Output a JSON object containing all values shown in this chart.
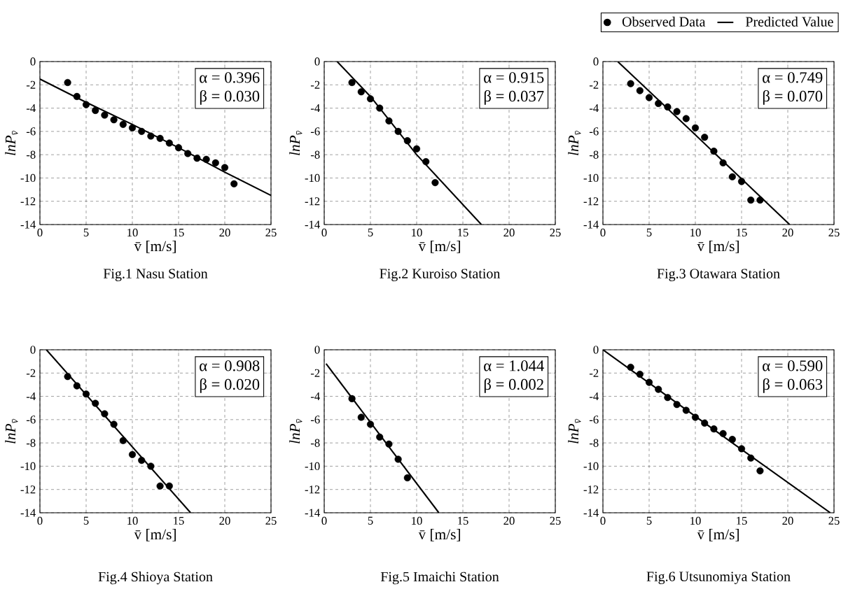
{
  "chart_data": [
    {
      "type": "scatter",
      "title": "Fig.1 Nasu Station",
      "xlabel": "v̄ [m/s]",
      "ylabel": "lnP$_{v̄}$",
      "annotations": [
        "α = 0.396",
        "β = 0.030"
      ],
      "xlim": [
        0,
        25
      ],
      "ylim": [
        -14,
        0
      ],
      "xticks": [
        0,
        5,
        10,
        15,
        20,
        25
      ],
      "yticks": [
        0,
        -2,
        -4,
        -6,
        -8,
        -10,
        -12,
        -14
      ],
      "grid": true,
      "series": [
        {
          "type": "scatter",
          "marker": "circle",
          "color": "#000000",
          "x": [
            3,
            4,
            5,
            6,
            7,
            8,
            9,
            10,
            11,
            12,
            13,
            14,
            15,
            16,
            17,
            18,
            19,
            20,
            21
          ],
          "values": [
            -1.8,
            -3.0,
            -3.7,
            -4.2,
            -4.6,
            -5.0,
            -5.4,
            -5.7,
            -6.0,
            -6.4,
            -6.6,
            -7.0,
            -7.4,
            -7.9,
            -8.3,
            -8.4,
            -8.7,
            -9.1,
            -10.5
          ]
        },
        {
          "type": "line",
          "marker": "none",
          "line_style": "solid",
          "color": "#000000",
          "x": [
            0,
            3,
            5,
            10,
            15,
            20,
            25
          ],
          "values": [
            -1.5,
            -2.7,
            -3.5,
            -5.4,
            -7.4,
            -9.5,
            -11.5
          ]
        }
      ]
    },
    {
      "type": "scatter",
      "title": "Fig.2 Kuroiso Station",
      "xlabel": "v̄ [m/s]",
      "ylabel": "lnP$_{v̄}$",
      "annotations": [
        "α = 0.915",
        "β = 0.037"
      ],
      "xlim": [
        0,
        25
      ],
      "ylim": [
        -14,
        0
      ],
      "xticks": [
        0,
        5,
        10,
        15,
        20,
        25
      ],
      "yticks": [
        0,
        -2,
        -4,
        -6,
        -8,
        -10,
        -12,
        -14
      ],
      "grid": true,
      "series": [
        {
          "type": "scatter",
          "marker": "circle",
          "color": "#000000",
          "x": [
            3,
            4,
            5,
            6,
            7,
            8,
            9,
            10,
            11,
            12
          ],
          "values": [
            -1.8,
            -2.6,
            -3.2,
            -4.0,
            -5.1,
            -6.0,
            -6.8,
            -7.5,
            -8.6,
            -10.4
          ]
        },
        {
          "type": "line",
          "marker": "none",
          "line_style": "solid",
          "color": "#000000",
          "x": [
            1.4,
            5,
            10,
            17
          ],
          "values": [
            0,
            -3.0,
            -8.0,
            -14
          ]
        }
      ]
    },
    {
      "type": "scatter",
      "title": "Fig.3 Otawara Station",
      "xlabel": "v̄ [m/s]",
      "ylabel": "lnP$_{v̄}$",
      "annotations": [
        "α = 0.749",
        "β = 0.070"
      ],
      "xlim": [
        0,
        25
      ],
      "ylim": [
        -14,
        0
      ],
      "xticks": [
        0,
        5,
        10,
        15,
        20,
        25
      ],
      "yticks": [
        0,
        -2,
        -4,
        -6,
        -8,
        -10,
        -12,
        -14
      ],
      "grid": true,
      "legend": "top right",
      "series": [
        {
          "type": "scatter",
          "name": "Observed Data",
          "marker": "circle",
          "color": "#000000",
          "x": [
            3,
            4,
            5,
            6,
            7,
            8,
            9,
            10,
            11,
            12,
            13,
            14,
            15,
            16,
            17
          ],
          "values": [
            -1.9,
            -2.5,
            -3.1,
            -3.6,
            -3.9,
            -4.3,
            -4.9,
            -5.7,
            -6.5,
            -7.7,
            -8.7,
            -9.9,
            -10.3,
            -11.9,
            -11.9
          ]
        },
        {
          "type": "line",
          "name": "Predicted Value",
          "marker": "none",
          "line_style": "solid",
          "color": "#000000",
          "x": [
            1.6,
            10,
            20.2
          ],
          "values": [
            0,
            -6.3,
            -14
          ]
        }
      ]
    },
    {
      "type": "scatter",
      "title": "Fig.4 Shioya Station",
      "xlabel": "v̄ [m/s]",
      "ylabel": "lnP$_{v̄}$",
      "annotations": [
        "α = 0.908",
        "β = 0.020"
      ],
      "xlim": [
        0,
        25
      ],
      "ylim": [
        -14,
        0
      ],
      "xticks": [
        0,
        5,
        10,
        15,
        20,
        25
      ],
      "yticks": [
        0,
        -2,
        -4,
        -6,
        -8,
        -10,
        -12,
        -14
      ],
      "grid": true,
      "series": [
        {
          "type": "scatter",
          "marker": "circle",
          "color": "#000000",
          "x": [
            3,
            4,
            5,
            6,
            7,
            8,
            9,
            10,
            11,
            12,
            13,
            14
          ],
          "values": [
            -2.3,
            -3.1,
            -3.8,
            -4.6,
            -5.5,
            -6.4,
            -7.8,
            -9.0,
            -9.5,
            -10.0,
            -11.7,
            -11.7
          ]
        },
        {
          "type": "line",
          "marker": "none",
          "line_style": "solid",
          "color": "#000000",
          "x": [
            0.7,
            16.3
          ],
          "values": [
            0,
            -14
          ]
        }
      ]
    },
    {
      "type": "scatter",
      "title": "Fig.5 Imaichi Station",
      "xlabel": "v̄ [m/s]",
      "ylabel": "lnP$_{v̄}$",
      "annotations": [
        "α = 1.044",
        "β = 0.002"
      ],
      "xlim": [
        0,
        25
      ],
      "ylim": [
        -14,
        0
      ],
      "xticks": [
        0,
        5,
        10,
        15,
        20,
        25
      ],
      "yticks": [
        0,
        -2,
        -4,
        -6,
        -8,
        -10,
        -12,
        -14
      ],
      "grid": true,
      "series": [
        {
          "type": "scatter",
          "marker": "circle",
          "color": "#000000",
          "x": [
            3,
            4,
            5,
            6,
            7,
            8,
            9
          ],
          "values": [
            -4.2,
            -5.8,
            -6.4,
            -7.5,
            -8.1,
            -9.4,
            -11.0
          ]
        },
        {
          "type": "line",
          "marker": "none",
          "line_style": "solid",
          "color": "#000000",
          "x": [
            0.2,
            12.4
          ],
          "values": [
            -1.2,
            -14
          ]
        }
      ]
    },
    {
      "type": "scatter",
      "title": "Fig.6 Utsunomiya Station",
      "xlabel": "v̄ [m/s]",
      "ylabel": "lnP$_{v̄}$",
      "annotations": [
        "α = 0.590",
        "β = 0.063"
      ],
      "xlim": [
        0,
        25
      ],
      "ylim": [
        -14,
        0
      ],
      "xticks": [
        0,
        5,
        10,
        15,
        20,
        25
      ],
      "yticks": [
        0,
        -2,
        -4,
        -6,
        -8,
        -10,
        -12,
        -14
      ],
      "grid": true,
      "series": [
        {
          "type": "scatter",
          "marker": "circle",
          "color": "#000000",
          "x": [
            3,
            4,
            5,
            6,
            7,
            8,
            9,
            10,
            11,
            12,
            13,
            14,
            15,
            16,
            17
          ],
          "values": [
            -1.5,
            -2.1,
            -2.8,
            -3.4,
            -4.1,
            -4.7,
            -5.2,
            -5.8,
            -6.3,
            -6.8,
            -7.2,
            -7.7,
            -8.5,
            -9.3,
            -10.4
          ]
        },
        {
          "type": "line",
          "marker": "none",
          "line_style": "solid",
          "color": "#000000",
          "x": [
            0,
            14,
            24.6
          ],
          "values": [
            0,
            -8.0,
            -14
          ]
        }
      ]
    }
  ]
}
